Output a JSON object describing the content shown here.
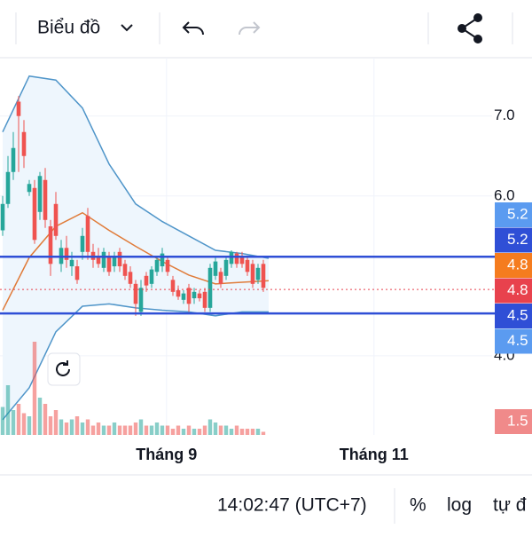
{
  "toolbar": {
    "chart_menu": "Biểu đồ"
  },
  "footer": {
    "time": "14:02:47 (UTC+7)",
    "percent": "%",
    "log": "log",
    "auto": "tự đ"
  },
  "chart_data": {
    "type": "candlestick",
    "xlim": [
      -0.5,
      92.5
    ],
    "xticks": [
      {
        "value": 30.8,
        "label": "Tháng 9"
      },
      {
        "value": 69.8,
        "label": "Tháng 11"
      }
    ],
    "ylim": [
      3.01,
      7.73
    ],
    "yticks": [
      {
        "value": 7,
        "label": "7.0"
      },
      {
        "value": 6,
        "label": "6.0"
      },
      {
        "value": 4,
        "label": "4.0"
      }
    ],
    "up_color": "#26a69a",
    "down_color": "#ef5350",
    "open": [
      5.57,
      5.9,
      6.3,
      7.18,
      6.8,
      6.05,
      6.1,
      5.8,
      6.2,
      5.62,
      5.9,
      5.15,
      5.35,
      5.12,
      5.12,
      5.3,
      5.75,
      5.3,
      5.25,
      5.1,
      5.25,
      5.12,
      5.3,
      5.15,
      5.05,
      4.9,
      4.55,
      5.0,
      4.9,
      5.05,
      5.12,
      5.2,
      4.95,
      4.82,
      4.7,
      4.85,
      4.72,
      4.78,
      4.8,
      4.6,
      5.0,
      5.05,
      5.0,
      5.15,
      5.28,
      5.25,
      5.2,
      5.15,
      4.95,
      5.15
    ],
    "high": [
      6.0,
      6.5,
      6.8,
      7.25,
      6.95,
      6.2,
      6.2,
      6.3,
      6.35,
      5.7,
      6.05,
      5.45,
      5.5,
      5.3,
      5.2,
      5.6,
      5.85,
      5.4,
      5.35,
      5.35,
      5.3,
      5.3,
      5.35,
      5.2,
      5.12,
      4.95,
      4.95,
      5.05,
      5.12,
      5.25,
      5.35,
      5.25,
      5.0,
      4.88,
      4.82,
      4.9,
      4.85,
      4.82,
      4.85,
      5.15,
      5.25,
      5.1,
      5.25,
      5.32,
      5.3,
      5.3,
      5.25,
      5.2,
      5.15,
      5.2
    ],
    "low": [
      5.5,
      5.85,
      6.2,
      6.3,
      6.35,
      6.0,
      5.4,
      5.7,
      5.6,
      5.0,
      5.45,
      5.05,
      5.1,
      5.0,
      4.9,
      5.2,
      5.2,
      5.1,
      5.1,
      5.05,
      5.0,
      5.05,
      5.05,
      4.95,
      4.85,
      4.5,
      4.5,
      4.8,
      4.85,
      5.0,
      5.05,
      5.0,
      4.75,
      4.7,
      4.65,
      4.55,
      4.65,
      4.68,
      4.55,
      4.55,
      4.95,
      4.85,
      4.95,
      5.1,
      5.1,
      5.1,
      5.0,
      4.85,
      4.9,
      4.8
    ],
    "close": [
      5.9,
      6.3,
      6.6,
      7.0,
      6.5,
      6.15,
      5.45,
      6.25,
      5.7,
      5.15,
      5.5,
      5.35,
      5.2,
      5.2,
      4.95,
      5.5,
      5.3,
      5.2,
      5.15,
      5.3,
      5.05,
      5.25,
      5.12,
      5.0,
      4.9,
      4.65,
      4.85,
      4.88,
      5.08,
      5.2,
      5.28,
      5.05,
      4.8,
      4.74,
      4.78,
      4.65,
      4.8,
      4.72,
      4.6,
      5.1,
      5.18,
      4.9,
      5.2,
      5.3,
      5.15,
      5.15,
      5.05,
      4.9,
      5.1,
      4.85
    ],
    "volume": [
      0.9,
      1.6,
      0.8,
      1.0,
      0.7,
      0.6,
      3.0,
      1.2,
      1.0,
      0.6,
      0.8,
      0.5,
      0.4,
      0.5,
      0.6,
      0.4,
      0.5,
      0.3,
      0.4,
      0.3,
      0.3,
      0.4,
      0.3,
      0.3,
      0.3,
      0.4,
      0.5,
      0.3,
      0.3,
      0.4,
      0.3,
      0.3,
      0.2,
      0.3,
      0.2,
      0.3,
      0.2,
      0.2,
      0.3,
      0.5,
      0.4,
      0.3,
      0.3,
      0.2,
      0.3,
      0.2,
      0.2,
      0.2,
      0.2,
      0.1
    ],
    "vlim": [
      0,
      5
    ],
    "bands": {
      "x": [
        0,
        5,
        10,
        15,
        20,
        25,
        30,
        35,
        40,
        45,
        50
      ],
      "upper": [
        6.8,
        7.5,
        7.45,
        7.1,
        6.4,
        5.9,
        5.68,
        5.5,
        5.32,
        5.28,
        5.22
      ],
      "middle": [
        4.57,
        5.23,
        5.62,
        5.79,
        5.57,
        5.37,
        5.18,
        5.01,
        4.9,
        4.92,
        4.94
      ],
      "lower": [
        3.2,
        3.6,
        4.3,
        4.62,
        4.65,
        4.6,
        4.57,
        4.55,
        4.5,
        4.55,
        4.55
      ],
      "band_color": "#4f95c9",
      "middle_color": "#e07b39",
      "fill": "#eef6fd"
    },
    "hlines": [
      {
        "value": 5.24,
        "color": "#2f4fd6",
        "style": "solid"
      },
      {
        "value": 4.53,
        "color": "#2f4fd6",
        "style": "solid"
      },
      {
        "value": 4.83,
        "color": "#e8424d",
        "style": "dotted"
      }
    ],
    "badges": [
      {
        "label": "5.2",
        "color": "#5b9bf0"
      },
      {
        "label": "5.2",
        "color": "#2f4fd6"
      },
      {
        "label": "4.8",
        "color": "#f57c1f"
      },
      {
        "label": "4.8",
        "color": "#e8424d"
      },
      {
        "label": "4.5",
        "color": "#2f4fd6"
      },
      {
        "label": "4.5",
        "color": "#5b9bf0"
      },
      {
        "label": "1.5",
        "color": "#f08a8a"
      }
    ]
  }
}
